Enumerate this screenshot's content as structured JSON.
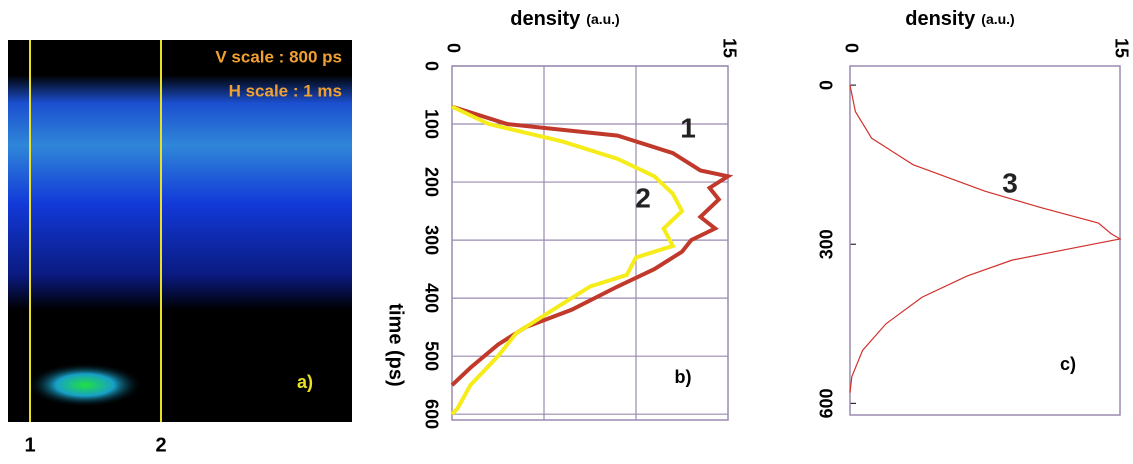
{
  "image_panel": {
    "v_scale": "V scale : 800 ps",
    "h_scale": "H scale : 1 ms",
    "panel_label": "a)",
    "line_labels": [
      "1",
      "2"
    ]
  },
  "chart_data": [
    {
      "type": "line",
      "x_label": "density",
      "x_label_unit": "(a.u.)",
      "y_label": "time (ps)",
      "panel_label": "b)",
      "xlim": [
        0,
        15
      ],
      "xticks": [
        0,
        15
      ],
      "xgrid": [
        5,
        10
      ],
      "ylim": [
        0,
        610
      ],
      "yticks": [
        0,
        100,
        200,
        300,
        400,
        500,
        600
      ],
      "grid": true,
      "series": [
        {
          "name": "1",
          "color": "#c0392b",
          "y": [
            70,
            100,
            120,
            150,
            180,
            190,
            210,
            230,
            260,
            280,
            300,
            320,
            350,
            380,
            420,
            450,
            480,
            520,
            550
          ],
          "values": [
            0,
            3,
            9,
            12,
            13.5,
            15,
            14,
            14.5,
            13.5,
            14.3,
            13,
            12.5,
            11,
            9,
            6.5,
            4,
            2.5,
            1,
            0
          ]
        },
        {
          "name": "2",
          "color": "#f5ec1a",
          "y": [
            70,
            100,
            130,
            160,
            190,
            220,
            250,
            280,
            310,
            330,
            360,
            380,
            420,
            460,
            500,
            550,
            590,
            600
          ],
          "values": [
            0,
            2,
            6,
            9,
            11,
            12,
            12.5,
            11.5,
            12,
            10,
            9.5,
            7.5,
            5.5,
            3.5,
            2.5,
            1,
            0.3,
            0
          ]
        }
      ]
    },
    {
      "type": "line",
      "x_label": "density",
      "x_label_unit": "(a.u.)",
      "panel_label": "c)",
      "xlim": [
        0,
        15
      ],
      "xticks": [
        0,
        15
      ],
      "ylim": [
        -36,
        622
      ],
      "yticks": [
        0,
        300,
        600
      ],
      "grid": false,
      "series": [
        {
          "name": "3",
          "color": "#d0312d",
          "y": [
            0,
            50,
            100,
            150,
            200,
            230,
            260,
            280,
            290,
            300,
            330,
            360,
            400,
            450,
            500,
            550,
            580
          ],
          "values": [
            0,
            0.3,
            1.2,
            3.5,
            7.5,
            10.5,
            13.8,
            14.5,
            15,
            13.5,
            9,
            6.5,
            4,
            2,
            0.7,
            0.1,
            0
          ]
        }
      ]
    }
  ]
}
